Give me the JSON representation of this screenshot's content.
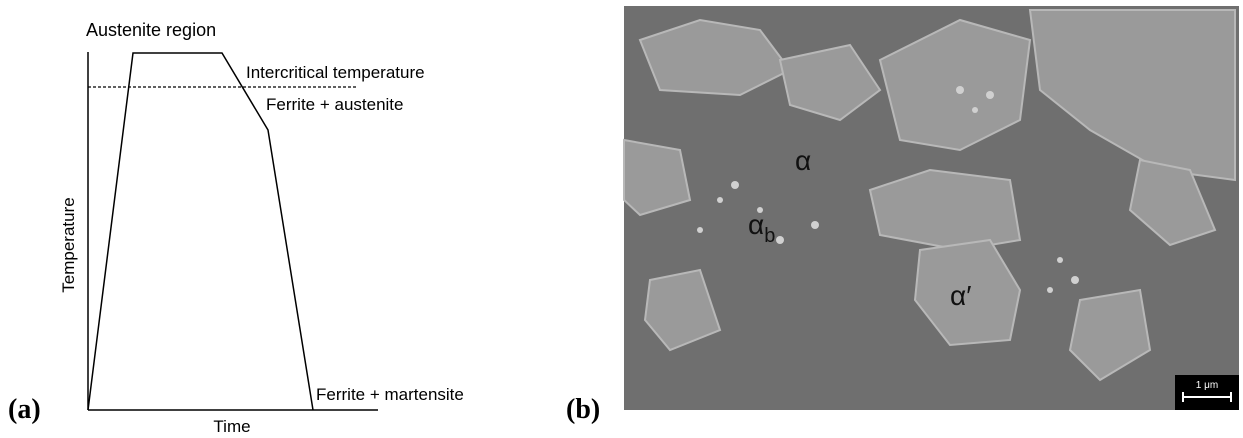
{
  "panel_a": {
    "label": "(a)",
    "region_label": "Austenite region",
    "intercritical_label": "Intercritical temperature",
    "two_phase_label": "Ferrite + austenite",
    "final_label": "Ferrite + martensite",
    "y_axis_label": "Temperature",
    "x_axis_label": "Time"
  },
  "panel_b": {
    "label": "(b)",
    "phases": [
      {
        "symbol": "α"
      },
      {
        "symbol": "α",
        "subscript": "b"
      },
      {
        "symbol": "α′"
      }
    ],
    "scale_bar": "1 μm"
  }
}
